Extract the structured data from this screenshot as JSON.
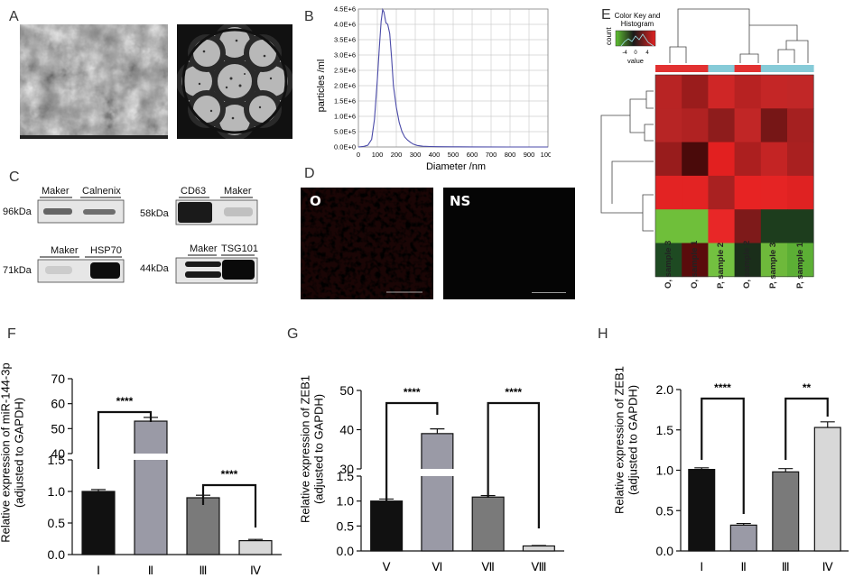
{
  "panels": {
    "A": "A",
    "B": "B",
    "C": "C",
    "D": "D",
    "E": "E",
    "F": "F",
    "G": "G",
    "H": "H"
  },
  "panel_b": {
    "ylabel": "particles /ml",
    "xlabel": "Diameter /nm"
  },
  "panel_c": {
    "blots": [
      {
        "lanes": [
          "Maker",
          "Calnenix"
        ],
        "kda": "96kDa"
      },
      {
        "lanes": [
          "CD63",
          "Maker"
        ],
        "kda": "58kDa"
      },
      {
        "lanes": [
          "Maker",
          "HSP70"
        ],
        "kda": "71kDa"
      },
      {
        "lanes": [
          "Maker",
          "TSG101"
        ],
        "kda": "44kDa"
      }
    ]
  },
  "panel_d": {
    "left_label": "O",
    "right_label": "NS"
  },
  "panel_e": {
    "color_key_title": "Color Key and Histogram",
    "count_label": "count",
    "value_label": "value",
    "key_ticks": [
      "-4",
      "0",
      "4"
    ],
    "columns": [
      "O, sample 3",
      "O, sample 1",
      "P, sample 2",
      "O, sample 2",
      "P, sample 3",
      "P, sample 1"
    ],
    "group_colors": [
      "#e23131",
      "#e23131",
      "#86cbd8",
      "#e23131",
      "#86cbd8",
      "#86cbd8"
    ],
    "matrix": [
      [
        "#b82424",
        "#9a1c1c",
        "#cf2626",
        "#b72222",
        "#c42626",
        "#c12727"
      ],
      [
        "#b72525",
        "#b02222",
        "#8e1c1c",
        "#c12626",
        "#761616",
        "#a52020"
      ],
      [
        "#981c1c",
        "#4a0a0a",
        "#e22020",
        "#ac1f1f",
        "#c42424",
        "#a92020"
      ],
      [
        "#e32323",
        "#e32323",
        "#a92121",
        "#e72323",
        "#e52424",
        "#df2222"
      ],
      [
        "#6fbf3a",
        "#6fbf3a",
        "#e82727",
        "#7e1a1a",
        "#1d3d1d",
        "#1d3d1d"
      ],
      [
        "#1e4a22",
        "#5a0c0c",
        "#73c140",
        "#1a2e1a",
        "#6eb93b",
        "#5caf35"
      ]
    ]
  },
  "chart_data": [
    {
      "type": "line",
      "title": "",
      "xlabel": "Diameter /nm",
      "ylabel": "particles /ml",
      "xlim": [
        0,
        1000
      ],
      "ylim": [
        0,
        4500000
      ],
      "xticks": [
        "0",
        "100",
        "200",
        "300",
        "400",
        "500",
        "600",
        "700",
        "800",
        "900",
        "1000"
      ],
      "yticks": [
        "0.0E+0",
        "5.0E+5",
        "1.0E+6",
        "1.5E+6",
        "2.0E+6",
        "2.5E+6",
        "3.0E+6",
        "3.5E+6",
        "4.0E+6",
        "4.5E+6"
      ],
      "grid": true,
      "series": [
        {
          "x": [
            0,
            30,
            50,
            70,
            85,
            100,
            110,
            120,
            128,
            135,
            145,
            155,
            165,
            175,
            185,
            200,
            215,
            230,
            245,
            260,
            275,
            290,
            310,
            340,
            380,
            420,
            500,
            600,
            800,
            1000
          ],
          "y": [
            0,
            20000,
            60000,
            250000,
            900000,
            2200000,
            3200000,
            4100000,
            4480000,
            4400000,
            4050000,
            4000000,
            3700000,
            2900000,
            2000000,
            1300000,
            800000,
            500000,
            320000,
            220000,
            150000,
            90000,
            50000,
            25000,
            15000,
            10000,
            5000,
            3000,
            1000,
            0
          ]
        }
      ]
    },
    {
      "type": "bar",
      "title": "",
      "ylabel": "Relative expression of miR-144-3p (adjusted to GAPDH)",
      "categories": [
        "Ⅰ",
        "Ⅱ",
        "Ⅲ",
        "Ⅳ"
      ],
      "values": [
        1.0,
        53,
        0.9,
        0.22
      ],
      "errors": [
        0.03,
        1.5,
        0.04,
        0.02
      ],
      "colors": [
        "#111111",
        "#9a9aa6",
        "#7a7a7a",
        "#d8d8d8"
      ],
      "y_broken_axis": {
        "lower": [
          0,
          1.5
        ],
        "upper": [
          40,
          70
        ]
      },
      "lower_ticks": [
        "0.0",
        "0.5",
        "1.0",
        "1.5"
      ],
      "upper_ticks": [
        "40",
        "50",
        "60",
        "70"
      ],
      "annotations": [
        {
          "between": [
            0,
            1
          ],
          "text": "****"
        },
        {
          "between": [
            2,
            3
          ],
          "text": "****"
        }
      ]
    },
    {
      "type": "bar",
      "title": "",
      "ylabel": "Relative expression of ZEB1 (adjusted to GAPDH)",
      "categories": [
        "Ⅴ",
        "Ⅵ",
        "Ⅶ",
        "Ⅷ"
      ],
      "values": [
        1.0,
        39,
        1.08,
        0.1
      ],
      "errors": [
        0.04,
        1.2,
        0.03,
        0.01
      ],
      "colors": [
        "#111111",
        "#9a9aa6",
        "#7a7a7a",
        "#d8d8d8"
      ],
      "y_broken_axis": {
        "lower": [
          0,
          1.5
        ],
        "upper": [
          30,
          50
        ]
      },
      "lower_ticks": [
        "0.0",
        "0.5",
        "1.0",
        "1.5"
      ],
      "upper_ticks": [
        "30",
        "40",
        "50"
      ],
      "annotations": [
        {
          "between": [
            0,
            1
          ],
          "text": "****"
        },
        {
          "between": [
            2,
            3
          ],
          "text": "****"
        }
      ]
    },
    {
      "type": "bar",
      "title": "",
      "ylabel": "Relative expression of ZEB1 (adjusted to GAPDH)",
      "categories": [
        "Ⅰ",
        "Ⅱ",
        "Ⅲ",
        "Ⅳ"
      ],
      "values": [
        1.01,
        0.32,
        0.98,
        1.53
      ],
      "errors": [
        0.02,
        0.02,
        0.04,
        0.07
      ],
      "colors": [
        "#111111",
        "#9a9aa6",
        "#7a7a7a",
        "#d8d8d8"
      ],
      "ylim": [
        0,
        2.0
      ],
      "yticks": [
        "0.0",
        "0.5",
        "1.0",
        "1.5",
        "2.0"
      ],
      "annotations": [
        {
          "between": [
            0,
            1
          ],
          "text": "****"
        },
        {
          "between": [
            2,
            3
          ],
          "text": "**"
        }
      ]
    }
  ]
}
